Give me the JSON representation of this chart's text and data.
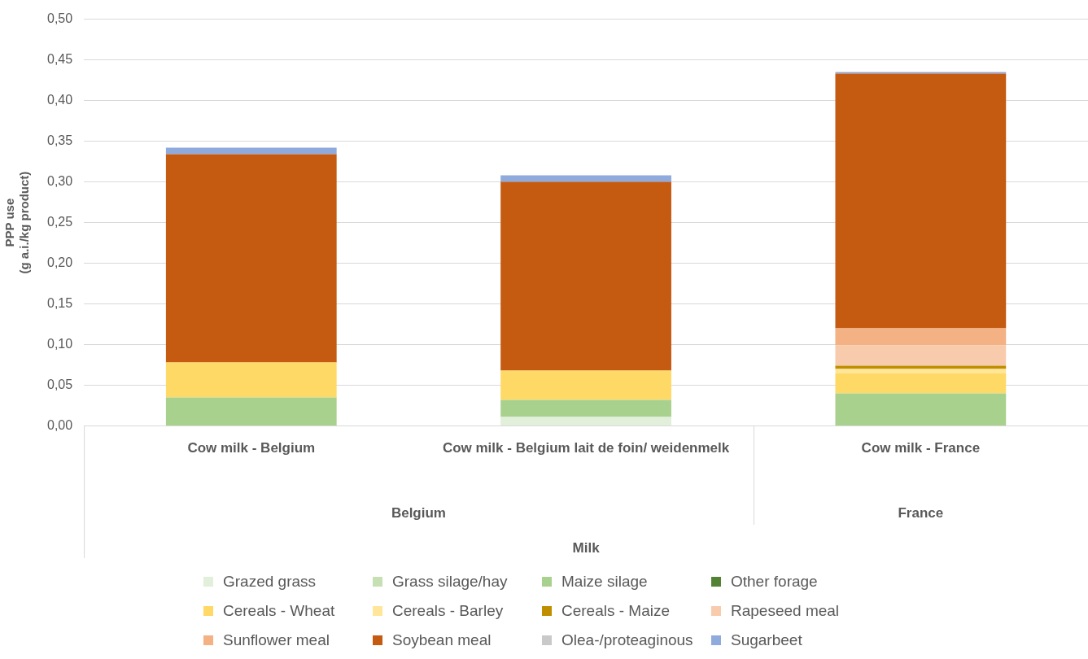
{
  "chart_data": {
    "type": "bar",
    "stacked": true,
    "ylabel": "PPP use\n(g a.i./kg product)",
    "categories": [
      "Cow milk - Belgium",
      "Cow milk - Belgium lait de foin/ weidenmelk",
      "Cow milk - France"
    ],
    "annotations": [
      "Belgium",
      "France",
      "Milk"
    ],
    "ylim": [
      0,
      0.5
    ],
    "yticks": [
      {
        "value": 0,
        "label": "0,00"
      },
      {
        "value": 0.05,
        "label": "0,05"
      },
      {
        "value": 0.1,
        "label": "0,10"
      },
      {
        "value": 0.15,
        "label": "0,15"
      },
      {
        "value": 0.2,
        "label": "0,20"
      },
      {
        "value": 0.25,
        "label": "0,25"
      },
      {
        "value": 0.3,
        "label": "0,30"
      },
      {
        "value": 0.35,
        "label": "0,35"
      },
      {
        "value": 0.4,
        "label": "0,40"
      },
      {
        "value": 0.45,
        "label": "0,45"
      },
      {
        "value": 0.5,
        "label": "0,50"
      }
    ],
    "grid": "y",
    "legend": "bottom",
    "series": [
      {
        "name": "Grazed grass",
        "color": "#e2efda",
        "values": [
          null,
          0.011,
          0
        ]
      },
      {
        "name": "Grass silage/hay",
        "color": "#c6e0b4",
        "values": [
          0,
          0,
          0
        ]
      },
      {
        "name": "Maize silage",
        "color": "#a9d18e",
        "values": [
          0.035,
          0.021,
          0.04
        ]
      },
      {
        "name": "Other forage",
        "color": "#548235",
        "values": [
          0,
          0,
          0
        ]
      },
      {
        "name": "Cereals - Wheat",
        "color": "#ffd966",
        "values": [
          0.043,
          0.036,
          0.025
        ]
      },
      {
        "name": "Cereals - Barley",
        "color": "#ffe699",
        "values": [
          0,
          0,
          0.005
        ]
      },
      {
        "name": "Cereals - Maize",
        "color": "#bf8f00",
        "values": [
          0,
          0,
          0.004
        ]
      },
      {
        "name": "Rapeseed meal",
        "color": "#f8cbad",
        "values": [
          0,
          0,
          0.025
        ]
      },
      {
        "name": "Sunflower meal",
        "color": "#f4b183",
        "values": [
          0,
          0,
          0.021
        ]
      },
      {
        "name": "Soybean meal",
        "color": "#c55a11",
        "values": [
          0.256,
          0.232,
          0.313
        ]
      },
      {
        "name": "Olea-/proteaginous",
        "color": "#c9c9c9",
        "values": [
          0,
          0,
          0
        ]
      },
      {
        "name": "Sugarbeet",
        "color": "#8faadc",
        "values": [
          0.008,
          0.008,
          0.002
        ]
      }
    ]
  }
}
